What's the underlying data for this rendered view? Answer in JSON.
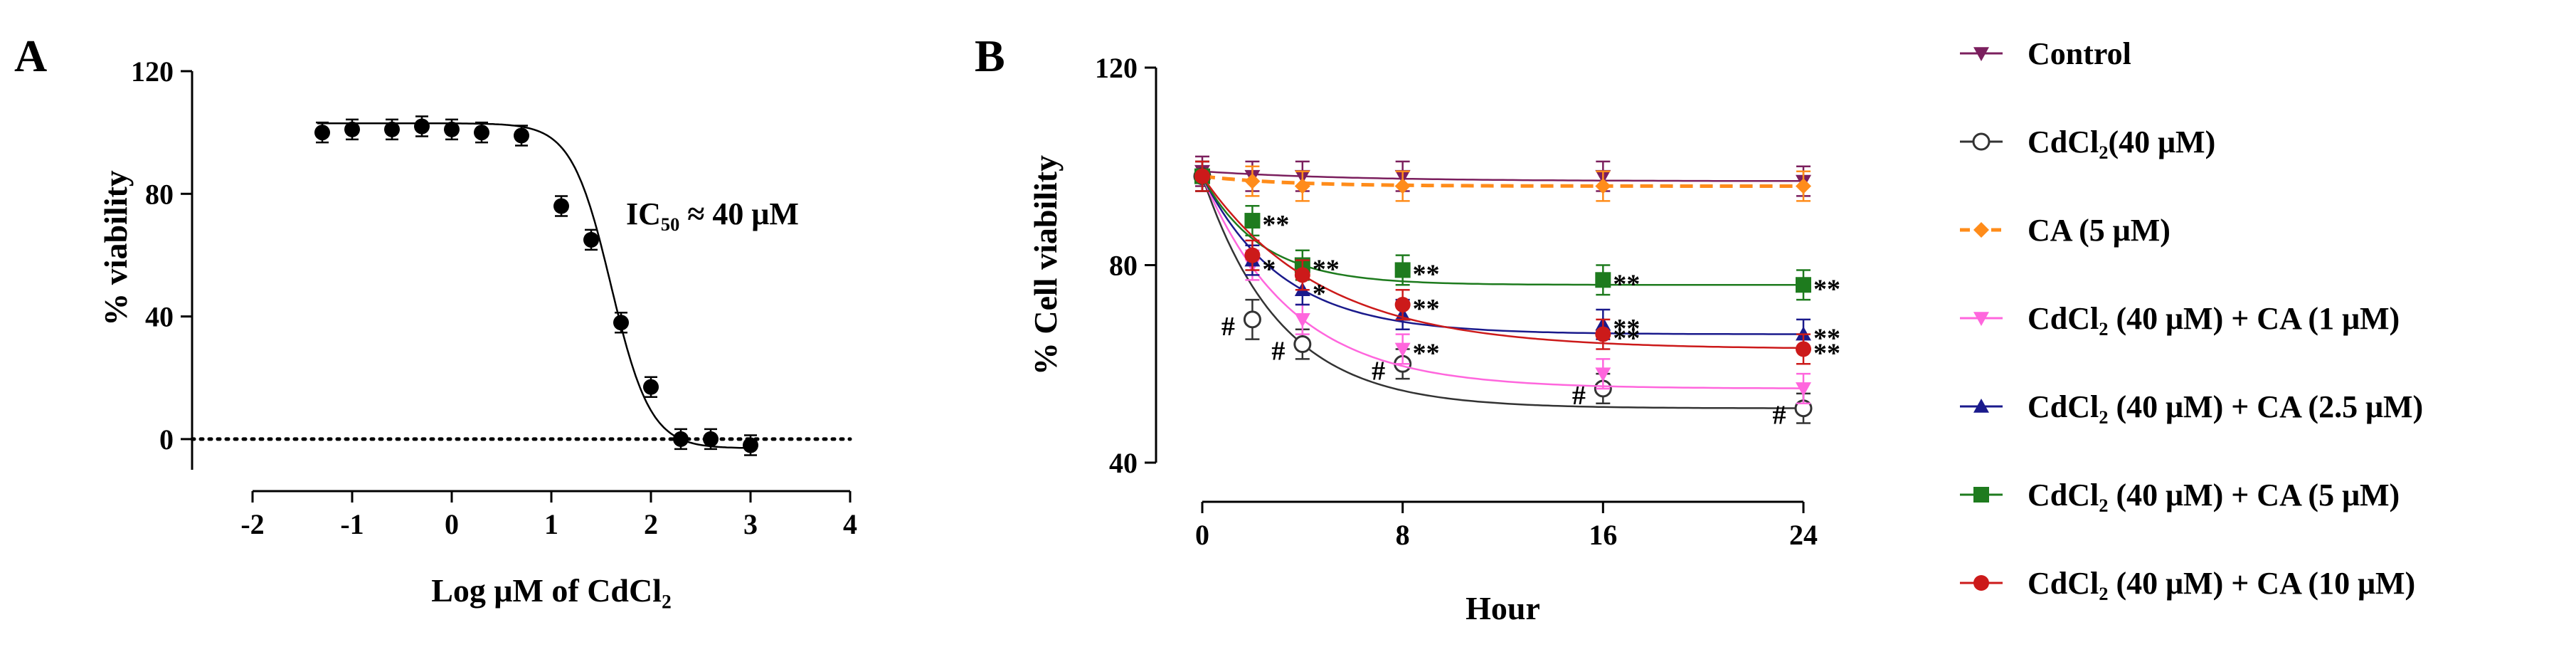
{
  "figure": {
    "panel_a_letter": "A",
    "panel_b_letter": "B"
  },
  "chart_data": [
    {
      "type": "scatter",
      "panel": "A",
      "title": "",
      "xlabel": "Log μM of CdCl₂",
      "ylabel": "% viability",
      "xlim": [
        -2,
        4
      ],
      "ylim": [
        -10,
        120
      ],
      "xticks": [
        "-2",
        "-1",
        "0",
        "1",
        "2",
        "3",
        "4"
      ],
      "yticks": [
        "0",
        "40",
        "80",
        "120"
      ],
      "reference_line_y": 0,
      "points": {
        "x": [
          -1.3,
          -1.0,
          -0.6,
          -0.3,
          0.0,
          0.3,
          0.7,
          1.1,
          1.4,
          1.7,
          2.0,
          2.3,
          2.6,
          3.0
        ],
        "y": [
          100,
          101,
          101,
          102,
          101,
          100,
          99,
          76,
          65,
          38,
          17,
          0,
          0,
          -2
        ]
      },
      "fit_curve": {
        "model": "sigmoid",
        "top": 103,
        "bottom": -3,
        "log_ic50": 1.6,
        "hill": 2.2
      },
      "annotation": "IC₅₀ ≈ 40 μM"
    },
    {
      "type": "line",
      "panel": "B",
      "title": "",
      "xlabel": "Hour",
      "ylabel": "% Cell viability",
      "xlim": [
        0,
        24
      ],
      "ylim": [
        40,
        120
      ],
      "x": [
        0,
        2,
        4,
        8,
        16,
        24
      ],
      "xticks": [
        "0",
        "8",
        "16",
        "24"
      ],
      "yticks": [
        "40",
        "80",
        "120"
      ],
      "series": [
        {
          "name": "Control",
          "color": "#7b1f5e",
          "marker": "triangle-down",
          "dash": false,
          "values": [
            99,
            98,
            98,
            98,
            98,
            97
          ],
          "errors": [
            3,
            3,
            3,
            3,
            3,
            3
          ]
        },
        {
          "name": "CdCl₂(40 μM)",
          "color": "#333333",
          "marker": "circle-open",
          "dash": false,
          "values": [
            98,
            69,
            64,
            60,
            55,
            51
          ],
          "errors": [
            3,
            4,
            3,
            3,
            3,
            3
          ]
        },
        {
          "name": "CA (5 μM)",
          "color": "#ff8c1a",
          "marker": "diamond",
          "dash": true,
          "values": [
            98,
            97,
            96,
            96,
            96,
            96
          ],
          "errors": [
            3,
            3,
            3,
            3,
            3,
            3
          ]
        },
        {
          "name": "CdCl₂ (40 μM) + CA (1  μM)",
          "color": "#ff66dd",
          "marker": "triangle-down",
          "dash": false,
          "values": [
            98,
            80,
            69,
            63,
            58,
            55
          ],
          "errors": [
            3,
            3,
            3,
            3,
            3,
            3
          ]
        },
        {
          "name": "CdCl₂ (40 μM) + CA (2.5 μM)",
          "color": "#1a1a8c",
          "marker": "triangle-up",
          "dash": false,
          "values": [
            98,
            81,
            75,
            70,
            68,
            66
          ],
          "errors": [
            3,
            3,
            3,
            3,
            3,
            3
          ]
        },
        {
          "name": "CdCl₂ (40 μM) + CA (5 μM)",
          "color": "#1e7b1e",
          "marker": "square",
          "dash": false,
          "values": [
            98,
            89,
            80,
            79,
            77,
            76
          ],
          "errors": [
            3,
            3,
            3,
            3,
            3,
            3
          ]
        },
        {
          "name": "CdCl₂ (40 μM) + CA (10 μM)",
          "color": "#cc1a1a",
          "marker": "circle",
          "dash": false,
          "values": [
            98,
            82,
            78,
            72,
            66,
            63
          ],
          "errors": [
            3,
            3,
            3,
            3,
            3,
            3
          ]
        }
      ],
      "annotations": [
        {
          "text": "#",
          "x": 2,
          "y": 69
        },
        {
          "text": "#",
          "x": 4,
          "y": 64
        },
        {
          "text": "#",
          "x": 8,
          "y": 60
        },
        {
          "text": "#",
          "x": 16,
          "y": 55
        },
        {
          "text": "#",
          "x": 24,
          "y": 51
        },
        {
          "text": "*",
          "x": 2,
          "y": 80
        },
        {
          "text": "**",
          "x": 2,
          "y": 89
        },
        {
          "text": "**",
          "x": 4,
          "y": 80
        },
        {
          "text": "*",
          "x": 4,
          "y": 75
        },
        {
          "text": "**",
          "x": 8,
          "y": 79
        },
        {
          "text": "**",
          "x": 8,
          "y": 72
        },
        {
          "text": "**",
          "x": 8,
          "y": 63
        },
        {
          "text": "**",
          "x": 16,
          "y": 77
        },
        {
          "text": "**",
          "x": 16,
          "y": 68
        },
        {
          "text": "**",
          "x": 16,
          "y": 66
        },
        {
          "text": "**",
          "x": 24,
          "y": 76
        },
        {
          "text": "**",
          "x": 24,
          "y": 66
        },
        {
          "text": "**",
          "x": 24,
          "y": 63
        }
      ],
      "legend_position": "right"
    }
  ]
}
